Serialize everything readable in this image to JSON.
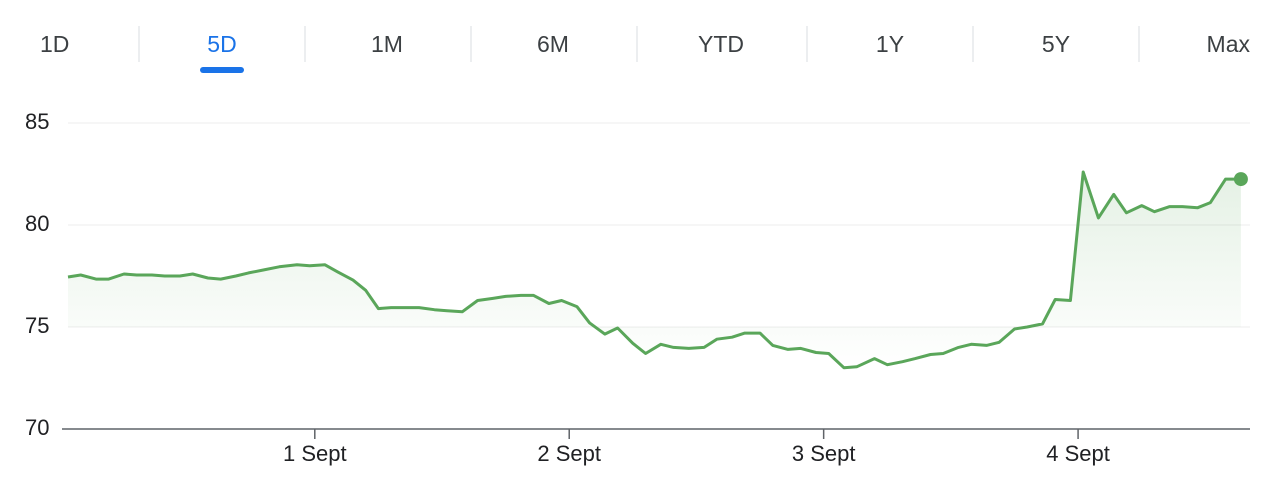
{
  "tabs": [
    "1D",
    "5D",
    "1M",
    "6M",
    "YTD",
    "1Y",
    "5Y",
    "Max"
  ],
  "active_tab_index": 1,
  "chart_data": {
    "type": "line",
    "color": "#5aa65a",
    "area": true,
    "grid": true,
    "x": [
      0.03,
      0.08,
      0.14,
      0.19,
      0.25,
      0.3,
      0.36,
      0.41,
      0.47,
      0.52,
      0.58,
      0.63,
      0.69,
      0.74,
      0.8,
      0.86,
      0.93,
      0.98,
      1.04,
      1.09,
      1.15,
      1.2,
      1.25,
      1.3,
      1.36,
      1.41,
      1.47,
      1.52,
      1.58,
      1.64,
      1.7,
      1.75,
      1.81,
      1.86,
      1.92,
      1.97,
      2.03,
      2.08,
      2.14,
      2.19,
      2.25,
      2.3,
      2.36,
      2.41,
      2.47,
      2.53,
      2.58,
      2.64,
      2.69,
      2.75,
      2.8,
      2.86,
      2.91,
      2.97,
      3.02,
      3.08,
      3.13,
      3.2,
      3.25,
      3.31,
      3.36,
      3.42,
      3.47,
      3.53,
      3.58,
      3.64,
      3.69,
      3.75,
      3.8,
      3.86,
      3.91,
      3.97,
      4.02,
      4.08,
      4.14,
      4.19,
      4.25,
      4.3,
      4.36,
      4.41,
      4.47,
      4.52,
      4.58,
      4.64
    ],
    "values": [
      77.45,
      77.55,
      77.35,
      77.35,
      77.6,
      77.55,
      77.55,
      77.5,
      77.5,
      77.6,
      77.4,
      77.35,
      77.5,
      77.65,
      77.8,
      77.95,
      78.05,
      78.0,
      78.05,
      77.7,
      77.3,
      76.8,
      75.9,
      75.95,
      75.95,
      75.95,
      75.85,
      75.8,
      75.75,
      76.3,
      76.4,
      76.5,
      76.55,
      76.55,
      76.15,
      76.3,
      76.0,
      75.2,
      74.65,
      74.95,
      74.2,
      73.7,
      74.15,
      74.0,
      73.95,
      74.0,
      74.4,
      74.5,
      74.7,
      74.7,
      74.1,
      73.9,
      73.95,
      73.75,
      73.7,
      73.0,
      73.05,
      73.45,
      73.15,
      73.3,
      73.45,
      73.65,
      73.7,
      74.0,
      74.15,
      74.1,
      74.25,
      74.9,
      75.0,
      75.15,
      76.35,
      76.3,
      82.6,
      80.35,
      81.5,
      80.6,
      80.95,
      80.65,
      80.9,
      80.9,
      80.85,
      81.1,
      82.25,
      82.25
    ],
    "xlim": [
      0.03,
      4.66
    ],
    "xticks": [
      {
        "value": 1,
        "label": "1 Sept"
      },
      {
        "value": 2,
        "label": "2 Sept"
      },
      {
        "value": 3,
        "label": "3 Sept"
      },
      {
        "value": 4,
        "label": "4 Sept"
      }
    ],
    "ylim": [
      70,
      85
    ],
    "yticks": [
      70,
      75,
      80,
      85
    ]
  }
}
